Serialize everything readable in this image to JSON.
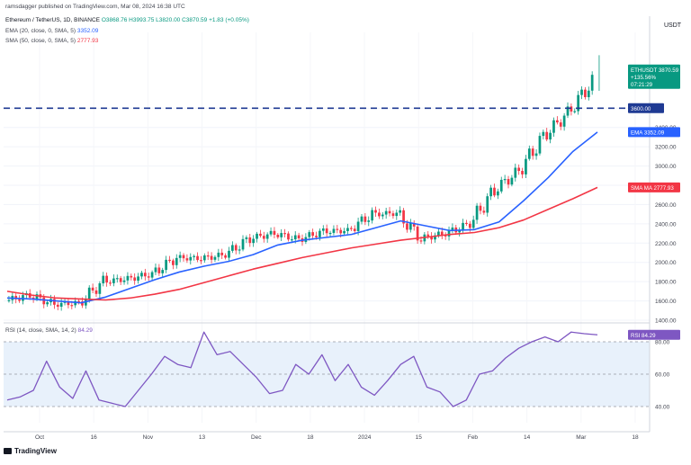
{
  "publisher_line": "ramsdagger published on TradingView.com, Mar 08, 2024 16:38 UTC",
  "legend": {
    "symbol": "Ethereum / TetherUS, 1D, BINANCE",
    "ohlc": "O3868.76  H3993.75  L3820.00  C3870.59  +1.83 (+0.05%)",
    "ema_label": "EMA (20, close, 0, SMA, 5)",
    "ema_value": "3352.09",
    "sma_label": "SMA (50, close, 0, SMA, 5)",
    "sma_value": "2777.93",
    "rsi_label": "RSI (14, close, SMA, 14, 2)",
    "rsi_value": "84.29"
  },
  "price_axis_unit": "USDT",
  "price_tags": {
    "symbol": "ETHUSDT",
    "price": "3870.59",
    "change": "+135.56%",
    "countdown": "07:21:29",
    "level": "3600.00",
    "ema_tag": "EMA",
    "ema_value": "3352.09",
    "sma_tag": "SMA MA",
    "sma_value": "2777.93",
    "rsi_tag": "RSI",
    "rsi_value": "84.29"
  },
  "brand": "TradingView",
  "colors": {
    "up": "#089981",
    "down": "#f23645",
    "ema": "#2962ff",
    "sma": "#f23645",
    "rsi": "#7e57c2",
    "level": "#1f3a93",
    "zone": "#e8f1fb"
  },
  "chart_data": [
    {
      "type": "line",
      "subtype": "candlestick",
      "title": "Ethereum / TetherUS, 1D, BINANCE",
      "ylim": [
        1400,
        4200
      ],
      "y_ticks": [
        1400,
        1600,
        1800,
        2000,
        2200,
        2400,
        2600,
        2800,
        3000,
        3200,
        3400,
        3600
      ],
      "x_tick_labels": [
        "Oct",
        "16",
        "Nov",
        "13",
        "Dec",
        "18",
        "2024",
        "15",
        "Feb",
        "14",
        "Mar",
        "18"
      ],
      "horizontal_level": 3600,
      "candles_weekly_close": [
        {
          "x": "Sep 26",
          "close": 1600
        },
        {
          "x": "Oct 2",
          "close": 1660
        },
        {
          "x": "Oct 9",
          "close": 1565
        },
        {
          "x": "Oct 16",
          "close": 1580
        },
        {
          "x": "Oct 23",
          "close": 1800
        },
        {
          "x": "Oct 30",
          "close": 1830
        },
        {
          "x": "Nov 6",
          "close": 1880
        },
        {
          "x": "Nov 13",
          "close": 2050
        },
        {
          "x": "Nov 20",
          "close": 2040
        },
        {
          "x": "Nov 27",
          "close": 2080
        },
        {
          "x": "Dec 4",
          "close": 2250
        },
        {
          "x": "Dec 11",
          "close": 2300
        },
        {
          "x": "Dec 18",
          "close": 2240
        },
        {
          "x": "Dec 25",
          "close": 2320
        },
        {
          "x": "Jan 1",
          "close": 2330
        },
        {
          "x": "Jan 8",
          "close": 2500
        },
        {
          "x": "Jan 15",
          "close": 2510
        },
        {
          "x": "Jan 22",
          "close": 2250
        },
        {
          "x": "Jan 29",
          "close": 2300
        },
        {
          "x": "Feb 5",
          "close": 2400
        },
        {
          "x": "Feb 12",
          "close": 2750
        },
        {
          "x": "Feb 19",
          "close": 2950
        },
        {
          "x": "Feb 26",
          "close": 3300
        },
        {
          "x": "Mar 4",
          "close": 3550
        },
        {
          "x": "Mar 8",
          "close": 3870.59
        }
      ],
      "series": [
        {
          "name": "EMA (20, close, 0, SMA, 5)",
          "values": [
            1630,
            1620,
            1600,
            1580,
            1640,
            1730,
            1820,
            1900,
            1960,
            2010,
            2080,
            2180,
            2230,
            2260,
            2290,
            2360,
            2430,
            2380,
            2330,
            2340,
            2420,
            2640,
            2880,
            3150,
            3352.09
          ]
        },
        {
          "name": "SMA (50, close, 0, SMA, 5)",
          "values": [
            1700,
            1660,
            1630,
            1620,
            1610,
            1630,
            1670,
            1720,
            1790,
            1860,
            1930,
            1990,
            2050,
            2100,
            2150,
            2190,
            2230,
            2260,
            2290,
            2310,
            2360,
            2440,
            2550,
            2660,
            2777.93
          ]
        }
      ]
    },
    {
      "type": "line",
      "title": "RSI (14, close, SMA, 14, 2)",
      "ylim": [
        30,
        90
      ],
      "y_ticks": [
        40,
        60,
        80
      ],
      "series": [
        {
          "name": "RSI",
          "values": [
            44,
            46,
            50,
            68,
            52,
            45,
            62,
            44,
            42,
            40,
            50,
            60,
            71,
            66,
            64,
            86,
            72,
            74,
            66,
            58,
            48,
            50,
            66,
            60,
            72,
            56,
            66,
            52,
            47,
            56,
            66,
            71,
            52,
            49,
            40,
            44,
            60,
            62,
            70,
            76,
            80,
            83,
            80,
            86,
            85,
            84.29
          ]
        }
      ]
    }
  ]
}
